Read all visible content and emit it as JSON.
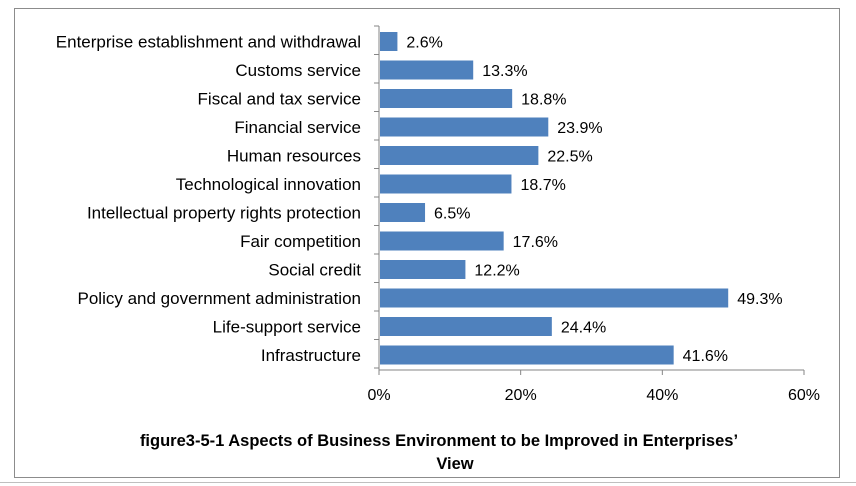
{
  "chart_data": {
    "type": "bar",
    "orientation": "horizontal",
    "categories": [
      "Enterprise establishment and withdrawal",
      "Customs service",
      "Fiscal and tax service",
      "Financial service",
      "Human resources",
      "Technological innovation",
      "Intellectual property rights protection",
      "Fair competition",
      "Social credit",
      "Policy and government administration",
      "Life-support service",
      "Infrastructure"
    ],
    "values": [
      2.6,
      13.3,
      18.8,
      23.9,
      22.5,
      18.7,
      6.5,
      17.6,
      12.2,
      49.3,
      24.4,
      41.6
    ],
    "value_labels": [
      "2.6%",
      "13.3%",
      "18.8%",
      "23.9%",
      "22.5%",
      "18.7%",
      "6.5%",
      "17.6%",
      "12.2%",
      "49.3%",
      "24.4%",
      "41.6%"
    ],
    "xlim": [
      0,
      60
    ],
    "xticks": [
      0,
      20,
      40,
      60
    ],
    "xtick_labels": [
      "0%",
      "20%",
      "40%",
      "60%"
    ],
    "bar_color": "#4F81BD",
    "grid": false,
    "legend": "none",
    "caption": [
      "figure3-5-1 Aspects of Business Environment to be Improved in Enterprises’",
      "View"
    ]
  }
}
